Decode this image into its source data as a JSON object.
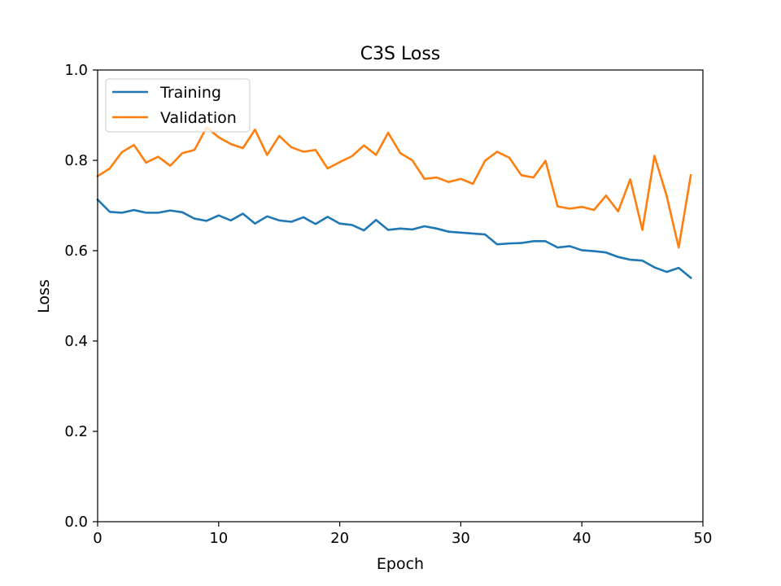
{
  "chart_data": {
    "type": "line",
    "title": "C3S Loss",
    "xlabel": "Epoch",
    "ylabel": "Loss",
    "xlim": [
      0,
      50
    ],
    "ylim": [
      0.0,
      1.0
    ],
    "xticks": [
      0,
      10,
      20,
      30,
      40,
      50
    ],
    "xtick_labels": [
      "0",
      "10",
      "20",
      "30",
      "40",
      "50"
    ],
    "yticks": [
      0.0,
      0.2,
      0.4,
      0.6,
      0.8,
      1.0
    ],
    "ytick_labels": [
      "0.0",
      "0.2",
      "0.4",
      "0.6",
      "0.8",
      "1.0"
    ],
    "grid": false,
    "legend_position": "upper-left",
    "x": [
      0,
      1,
      2,
      3,
      4,
      5,
      6,
      7,
      8,
      9,
      10,
      11,
      12,
      13,
      14,
      15,
      16,
      17,
      18,
      19,
      20,
      21,
      22,
      23,
      24,
      25,
      26,
      27,
      28,
      29,
      30,
      31,
      32,
      33,
      34,
      35,
      36,
      37,
      38,
      39,
      40,
      41,
      42,
      43,
      44,
      45,
      46,
      47,
      48,
      49
    ],
    "series": [
      {
        "name": "Training",
        "color": "#1f77b4",
        "values": [
          0.713,
          0.686,
          0.684,
          0.69,
          0.684,
          0.684,
          0.689,
          0.685,
          0.671,
          0.666,
          0.678,
          0.667,
          0.682,
          0.66,
          0.676,
          0.667,
          0.664,
          0.674,
          0.659,
          0.675,
          0.66,
          0.657,
          0.645,
          0.668,
          0.646,
          0.649,
          0.647,
          0.654,
          0.649,
          0.642,
          0.64,
          0.638,
          0.636,
          0.614,
          0.616,
          0.617,
          0.621,
          0.621,
          0.607,
          0.61,
          0.601,
          0.599,
          0.596,
          0.586,
          0.58,
          0.578,
          0.563,
          0.553,
          0.562,
          0.54
        ]
      },
      {
        "name": "Validation",
        "color": "#ff7f0e",
        "values": [
          0.765,
          0.782,
          0.818,
          0.834,
          0.795,
          0.808,
          0.788,
          0.816,
          0.823,
          0.873,
          0.851,
          0.836,
          0.827,
          0.868,
          0.812,
          0.854,
          0.829,
          0.819,
          0.823,
          0.782,
          0.796,
          0.809,
          0.833,
          0.812,
          0.861,
          0.816,
          0.8,
          0.759,
          0.762,
          0.752,
          0.759,
          0.748,
          0.799,
          0.819,
          0.806,
          0.767,
          0.762,
          0.799,
          0.698,
          0.693,
          0.697,
          0.69,
          0.722,
          0.687,
          0.758,
          0.646,
          0.81,
          0.722,
          0.607,
          0.767
        ]
      }
    ]
  }
}
